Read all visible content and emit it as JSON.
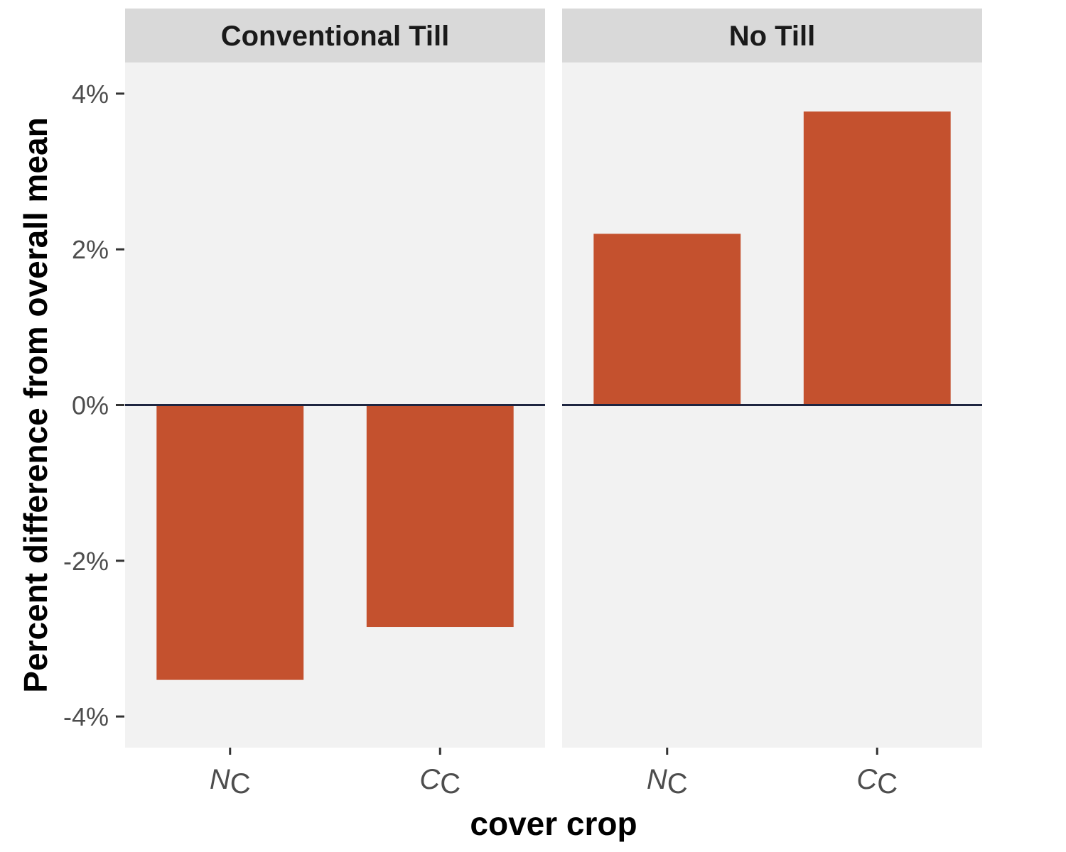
{
  "chart_data": {
    "type": "bar",
    "xlabel": "cover crop",
    "ylabel": "Percent difference from overall mean",
    "ylim": [
      -4.4,
      4.4
    ],
    "yticks": [
      -4,
      -2,
      0,
      2,
      4
    ],
    "ytick_labels": [
      "-4%",
      "-2%",
      "0%",
      "2%",
      "4%"
    ],
    "categories": [
      {
        "main": "N",
        "sub": "C"
      },
      {
        "main": "C",
        "sub": "C"
      }
    ],
    "facets": [
      {
        "label": "Conventional Till",
        "values": [
          -3.53,
          -2.85
        ]
      },
      {
        "label": "No Till",
        "values": [
          2.2,
          3.77
        ]
      }
    ],
    "reference_line": 0,
    "bar_color": "#C4512E",
    "panel_background": "#F2F2F2",
    "strip_background": "#D9D9D9",
    "reference_line_color": "#1E2540"
  }
}
